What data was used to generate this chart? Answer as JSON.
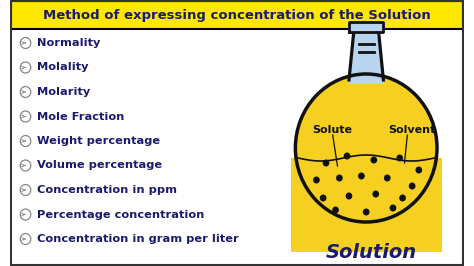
{
  "title": "Method of expressing concentration of the Solution",
  "title_bg": "#FFE800",
  "title_color": "#1a1a6e",
  "bg_color": "#FFFFFF",
  "border_color": "#000000",
  "items": [
    "Normality",
    "Molality",
    "Molarity",
    "Mole Fraction",
    "Weight percentage",
    "Volume percentage",
    "Concentration in ppm",
    "Percentage concentration",
    "Concentration in gram per liter"
  ],
  "item_color": "#1a1a6e",
  "flask_outline": "#111111",
  "flask_body_color": "#b8d4ee",
  "flask_liquid_color": "#f5d020",
  "solute_label": "Solute",
  "solvent_label": "Solvent",
  "solution_label": "Solution",
  "solution_label_color": "#1a1a6e",
  "label_line_color": "#111111",
  "bullet_color": "#888888",
  "dot_color": "#111111",
  "stopper_color": "#b8d4ee"
}
